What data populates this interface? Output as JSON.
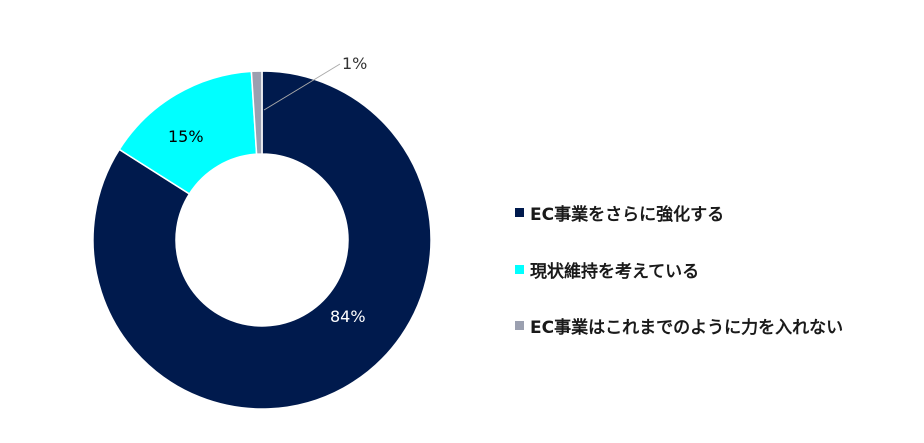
{
  "chart_data": {
    "type": "pie",
    "subtype": "donut",
    "title": "",
    "categories": [
      "EC事業をさらに強化する",
      "現状維持を考えている",
      "EC事業はこれまでのように力を入れない"
    ],
    "values": [
      84,
      15,
      1
    ],
    "labels": [
      "84%",
      "15%",
      "1%"
    ],
    "colors": [
      "#001a4d",
      "#00ffff",
      "#9ba0b0"
    ],
    "legend_position": "right"
  },
  "legend": {
    "items": [
      {
        "label": "EC事業をさらに強化する",
        "color": "#001a4d"
      },
      {
        "label": "現状維持を考えている",
        "color": "#00ffff"
      },
      {
        "label": "EC事業はこれまでのように力を入れない",
        "color": "#9ba0b0"
      }
    ]
  }
}
